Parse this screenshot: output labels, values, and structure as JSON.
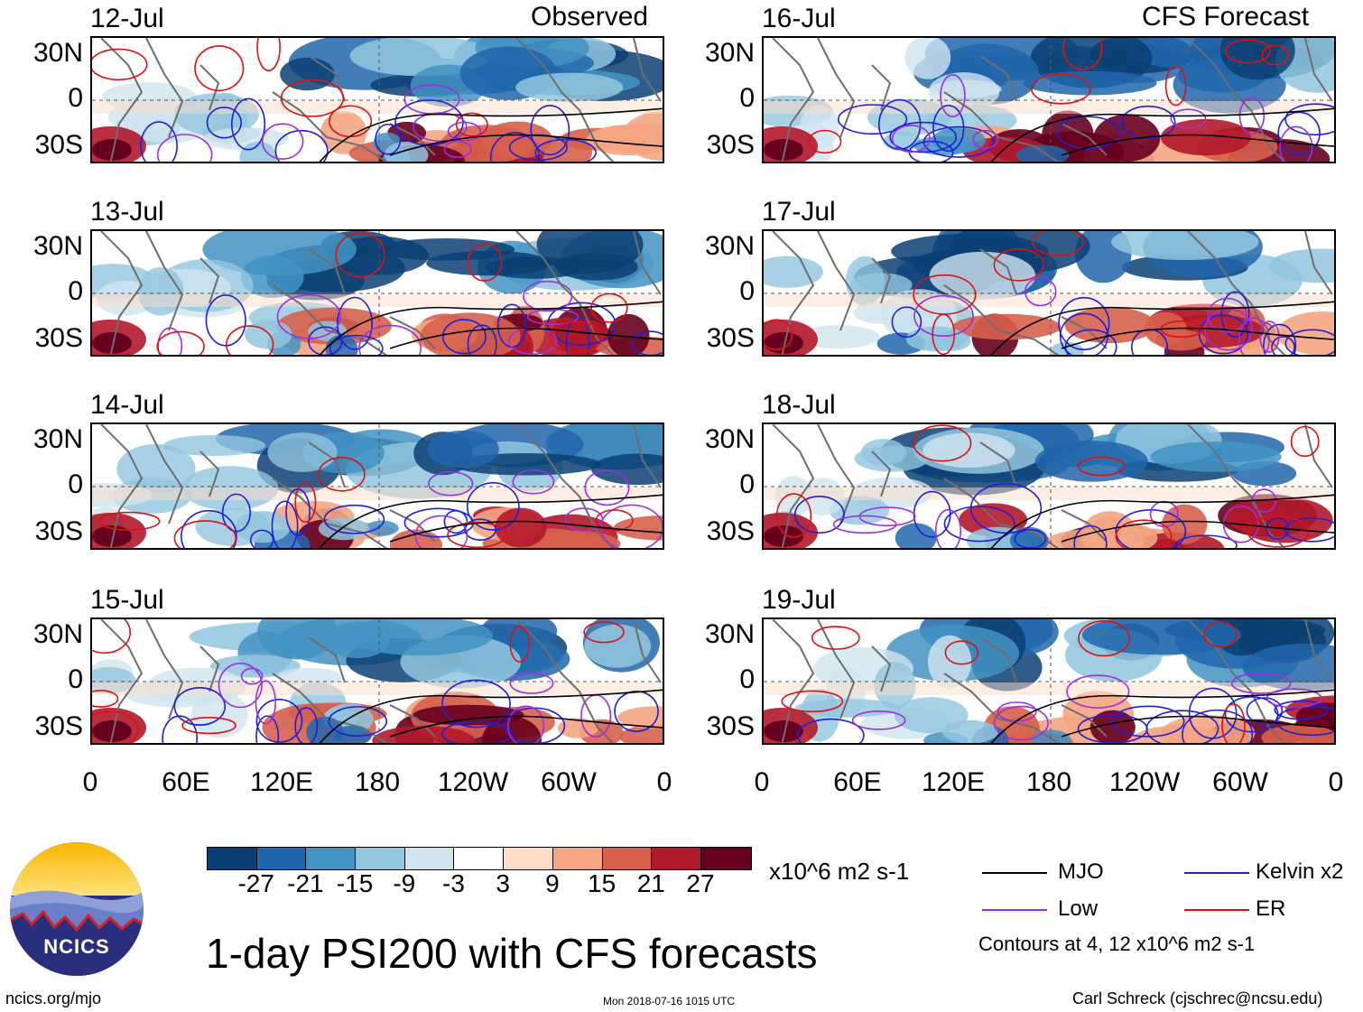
{
  "chart_data": {
    "type": "heatmap",
    "title": "1-day PSI200 with CFS forecasts",
    "variable": "PSI200",
    "units": "x10^6 m2 s-1",
    "observed_label": "Observed",
    "forecast_label": "CFS Forecast",
    "ylabels": [
      "30N",
      "0",
      "30S"
    ],
    "xlabels": [
      "0",
      "60E",
      "120E",
      "180",
      "120W",
      "60W",
      "0"
    ],
    "panels_observed": [
      {
        "date": "12-Jul"
      },
      {
        "date": "13-Jul"
      },
      {
        "date": "14-Jul"
      },
      {
        "date": "15-Jul"
      }
    ],
    "panels_forecast": [
      {
        "date": "16-Jul"
      },
      {
        "date": "17-Jul"
      },
      {
        "date": "18-Jul"
      },
      {
        "date": "19-Jul"
      }
    ],
    "colorbar": {
      "ticks": [
        "-27",
        "-21",
        "-15",
        "-9",
        "-3",
        "3",
        "9",
        "15",
        "21",
        "27"
      ],
      "colors": [
        "#0b3f73",
        "#2166ac",
        "#4393c3",
        "#92c5de",
        "#d1e5f0",
        "#ffffff",
        "#fddbc7",
        "#f4a582",
        "#d6604d",
        "#b2182b",
        "#67001f"
      ]
    },
    "legend": [
      {
        "label": "MJO",
        "color": "#000000"
      },
      {
        "label": "Kelvin x2",
        "color": "#1f1fd9"
      },
      {
        "label": "Low",
        "color": "#9b30e0"
      },
      {
        "label": "ER",
        "color": "#e01010"
      }
    ],
    "contour_note": "Contours at 4, 12 x10^6 m2 s-1"
  },
  "logo": {
    "text": "NCICS"
  },
  "footer": {
    "url": "ncics.org/mjo",
    "timestamp": "Mon 2018-07-16 1015 UTC",
    "author": "Carl Schreck (cjschrec@ncsu.edu)"
  }
}
